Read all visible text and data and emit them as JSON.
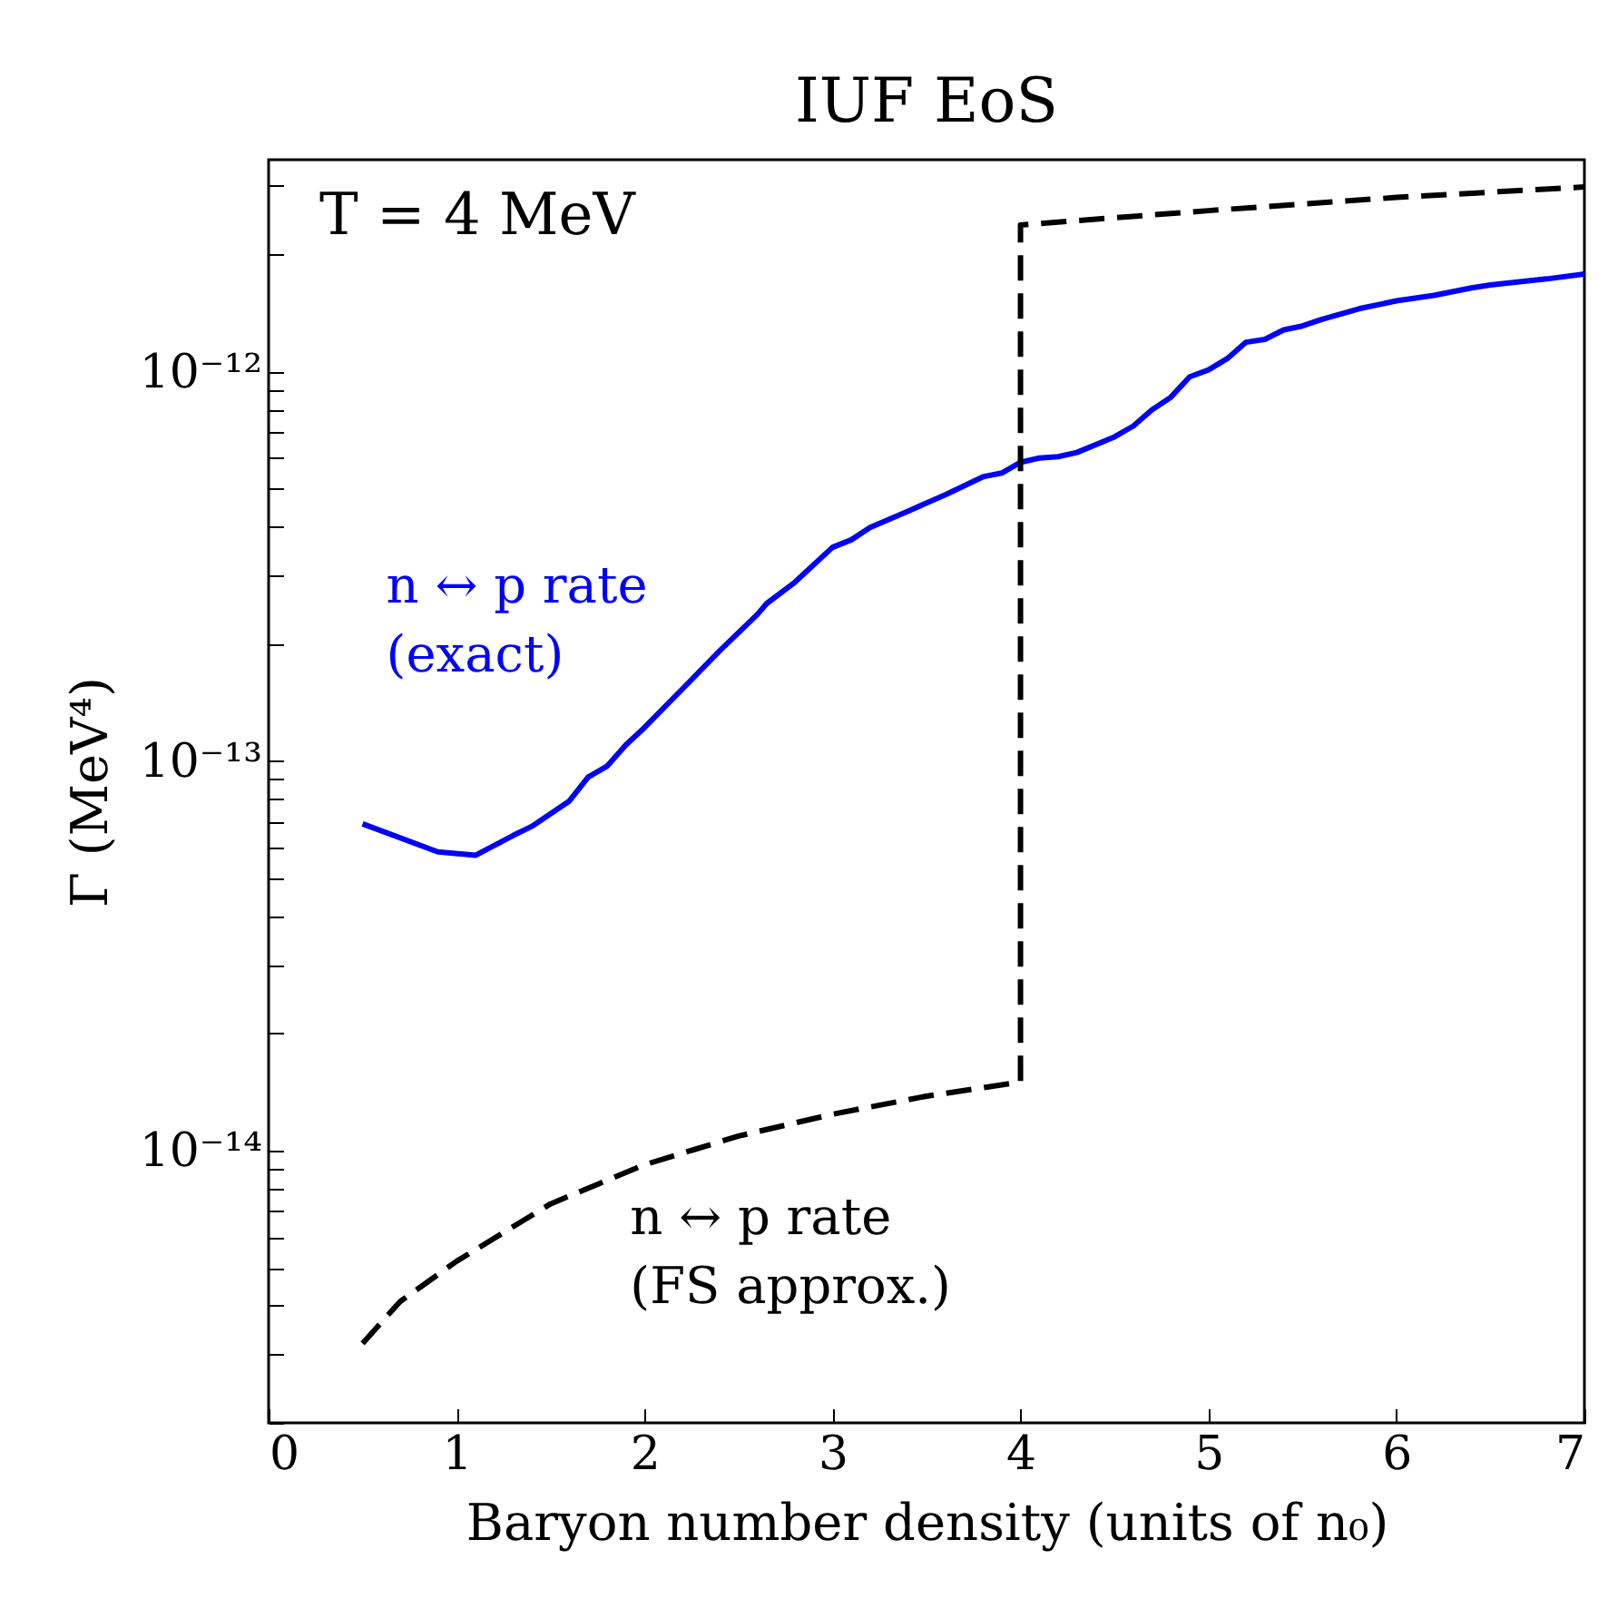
{
  "chart_data": {
    "type": "line",
    "title": "IUF EoS",
    "xlabel": "Baryon number density (units of n₀)",
    "ylabel": "Γ (MeV⁴)",
    "log": "y",
    "grid": false,
    "xlim": [
      0,
      7
    ],
    "xticks": [
      0,
      1,
      2,
      3,
      4,
      5,
      6,
      7
    ],
    "ylim": [
      2e-15,
      3.5e-12
    ],
    "yticks": [
      {
        "value": 2e-15,
        "label": null
      },
      {
        "value": 3e-15,
        "label": null
      },
      {
        "value": 4e-15,
        "label": null
      },
      {
        "value": 5e-15,
        "label": null
      },
      {
        "value": 6e-15,
        "label": null
      },
      {
        "value": 7e-15,
        "label": null
      },
      {
        "value": 8e-15,
        "label": null
      },
      {
        "value": 9e-15,
        "label": null
      },
      {
        "value": 1e-14,
        "label": "10⁻¹⁴"
      },
      {
        "value": 2e-14,
        "label": null
      },
      {
        "value": 3e-14,
        "label": null
      },
      {
        "value": 4e-14,
        "label": null
      },
      {
        "value": 5e-14,
        "label": null
      },
      {
        "value": 6e-14,
        "label": null
      },
      {
        "value": 7e-14,
        "label": null
      },
      {
        "value": 8e-14,
        "label": null
      },
      {
        "value": 9e-14,
        "label": null
      },
      {
        "value": 1e-13,
        "label": "10⁻¹³"
      },
      {
        "value": 2e-13,
        "label": null
      },
      {
        "value": 3e-13,
        "label": null
      },
      {
        "value": 4e-13,
        "label": null
      },
      {
        "value": 5e-13,
        "label": null
      },
      {
        "value": 6e-13,
        "label": null
      },
      {
        "value": 7e-13,
        "label": null
      },
      {
        "value": 8e-13,
        "label": null
      },
      {
        "value": 9e-13,
        "label": null
      },
      {
        "value": 1e-12,
        "label": "10⁻¹²"
      },
      {
        "value": 2e-12,
        "label": null
      },
      {
        "value": 3e-12,
        "label": null
      }
    ],
    "annotations": [
      "T = 4 MeV"
    ],
    "series": [
      {
        "name": "n ↔ p rate\n(exact)",
        "color": "#0000ff",
        "line_style": "solid",
        "x": [
          0.5,
          0.9,
          1.1,
          1.3,
          1.4,
          1.6,
          1.7,
          1.8,
          1.9,
          2.0,
          2.2,
          2.4,
          2.6,
          2.65,
          2.8,
          3.0,
          3.1,
          3.2,
          3.4,
          3.6,
          3.8,
          3.9,
          4.0,
          4.1,
          4.2,
          4.3,
          4.5,
          4.6,
          4.7,
          4.8,
          4.9,
          5.0,
          5.1,
          5.2,
          5.3,
          5.4,
          5.5,
          5.6,
          5.8,
          6.0,
          6.2,
          6.4,
          6.5,
          6.6,
          6.8,
          7.0
        ],
        "values": [
          6.9e-14,
          5.85e-14,
          5.73e-14,
          6.44e-14,
          6.8e-14,
          7.9e-14,
          9.1e-14,
          9.7e-14,
          1.1e-13,
          1.22e-13,
          1.53e-13,
          1.92e-13,
          2.38e-13,
          2.54e-13,
          2.88e-13,
          3.54e-13,
          3.7e-13,
          3.98e-13,
          4.38e-13,
          4.83e-13,
          5.37e-13,
          5.49e-13,
          5.85e-13,
          6e-13,
          6.05e-13,
          6.2e-13,
          6.8e-13,
          7.25e-13,
          7.98e-13,
          8.6e-13,
          9.7e-13,
          1.01e-12,
          1.08e-12,
          1.19e-12,
          1.21e-12,
          1.28e-12,
          1.31e-12,
          1.36e-12,
          1.45e-12,
          1.52e-12,
          1.57e-12,
          1.64e-12,
          1.67e-12,
          1.69e-12,
          1.73e-12,
          1.78e-12
        ]
      },
      {
        "name": "n ↔ p rate\n(FS approx.)",
        "color": "#000000",
        "line_style": "dashed",
        "x": [
          0.5,
          0.7,
          1.0,
          1.5,
          2.0,
          2.5,
          3.0,
          3.5,
          4.0,
          4.0,
          5.0,
          6.0,
          7.0
        ],
        "values": [
          3.2e-15,
          4.1e-15,
          5.2e-15,
          7.3e-15,
          9.2e-15,
          1.09e-14,
          1.24e-14,
          1.38e-14,
          1.5e-14,
          2.38e-12,
          2.59e-12,
          2.8e-12,
          2.98e-12
        ]
      }
    ]
  }
}
